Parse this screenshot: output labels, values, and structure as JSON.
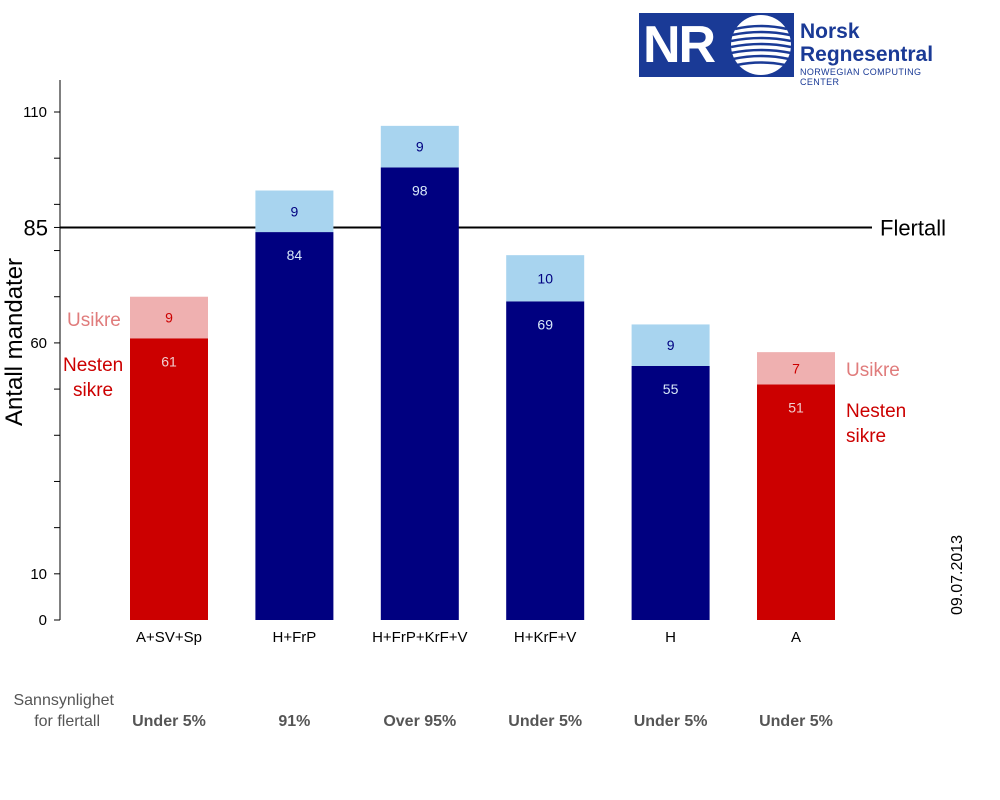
{
  "logo": {
    "mark": "NR",
    "line1": "Norsk",
    "line2": "Regnesentral",
    "line3": "NORWEGIAN COMPUTING CENTER",
    "color": "#1a3a96"
  },
  "colors": {
    "red_sure": "#cc0000",
    "red_unsure": "#efb0b0",
    "blue_sure": "#000080",
    "blue_unsure": "#a8d4ef",
    "label_unsure_red": "#cc0000",
    "label_sure_red": "#f0d0d0",
    "label_unsure_blue": "#000080",
    "label_sure_blue": "#d8e8f8"
  },
  "date": "09.07.2013",
  "probability_header": [
    "Sannsynlighet",
    "for flertall"
  ],
  "legend": {
    "unsure": "Usikre",
    "sure": [
      "Nesten",
      "sikre"
    ]
  },
  "chart_data": {
    "type": "bar",
    "stacked": true,
    "ylabel": "Antall mandater",
    "ylim": [
      0,
      117
    ],
    "yticks_labeled": [
      0,
      10,
      60,
      85,
      110
    ],
    "yticks_minor": [
      20,
      30,
      40,
      50,
      70,
      80,
      90,
      100
    ],
    "reference_line": {
      "value": 85,
      "label": "Flertall"
    },
    "categories": [
      "A+SV+Sp",
      "H+FrP",
      "H+FrP+KrF+V",
      "H+KrF+V",
      "H",
      "A"
    ],
    "series": [
      {
        "name": "Nesten sikre",
        "values": [
          61,
          84,
          98,
          69,
          55,
          51
        ]
      },
      {
        "name": "Usikre",
        "values": [
          9,
          9,
          9,
          10,
          9,
          7
        ]
      }
    ],
    "bar_color_group": [
      "red",
      "blue",
      "blue",
      "blue",
      "blue",
      "red"
    ],
    "probability": [
      "Under 5%",
      "91%",
      "Over 95%",
      "Under 5%",
      "Under 5%",
      "Under 5%"
    ]
  }
}
